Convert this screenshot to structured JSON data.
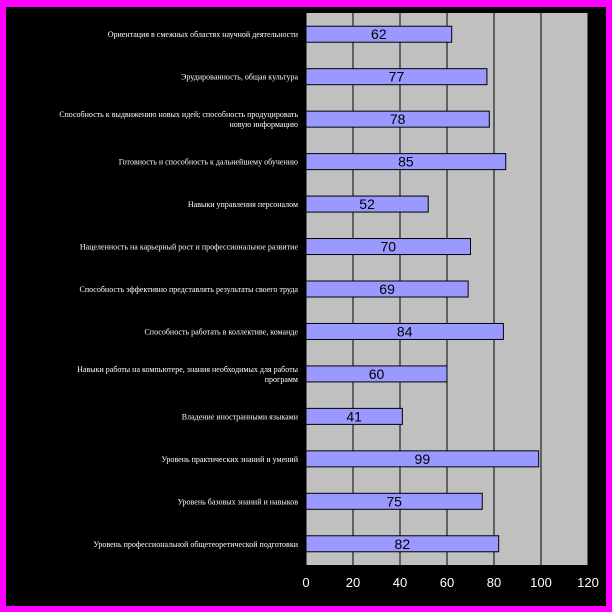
{
  "chart_data": {
    "type": "bar",
    "orientation": "horizontal",
    "title": "",
    "xlabel": "",
    "ylabel": "",
    "xlim": [
      0,
      120
    ],
    "x_ticks": [
      0,
      20,
      40,
      60,
      80,
      100,
      120
    ],
    "grid": true,
    "legend": "none",
    "categories": [
      "Ориентация в смежных областях научной деятельности",
      "Эрудированность, общая культура",
      "Способность к выдвижению новых идей; способность продуцировать новую информацию",
      "Готовность и способность к дальнейшему обучению",
      "Навыки управления персоналом",
      "Нацеленность на карьерный рост и профессиональное развитие",
      "Способность эффективно представлять результаты своего труда",
      "Способность работать в коллективе, команде",
      "Навыки работы на компьютере, знания необходимых для работы программ",
      "Владение иностранными языками",
      "Уровень практических знаний и умений",
      "Уровень базовых знаний и навыков",
      "Уровень профессиональной общетеоретической подготовки"
    ],
    "values": [
      62,
      77,
      78,
      85,
      52,
      70,
      69,
      84,
      60,
      41,
      99,
      75,
      82
    ],
    "colors": {
      "background": "#ff00ff",
      "frame": "#000000",
      "plot_area": "#c0c0c0",
      "bar_fill": "#9999ff",
      "bar_stroke": "#000000",
      "gridline": "#000000",
      "label_text": "#ffffff",
      "value_text": "#000000"
    }
  }
}
